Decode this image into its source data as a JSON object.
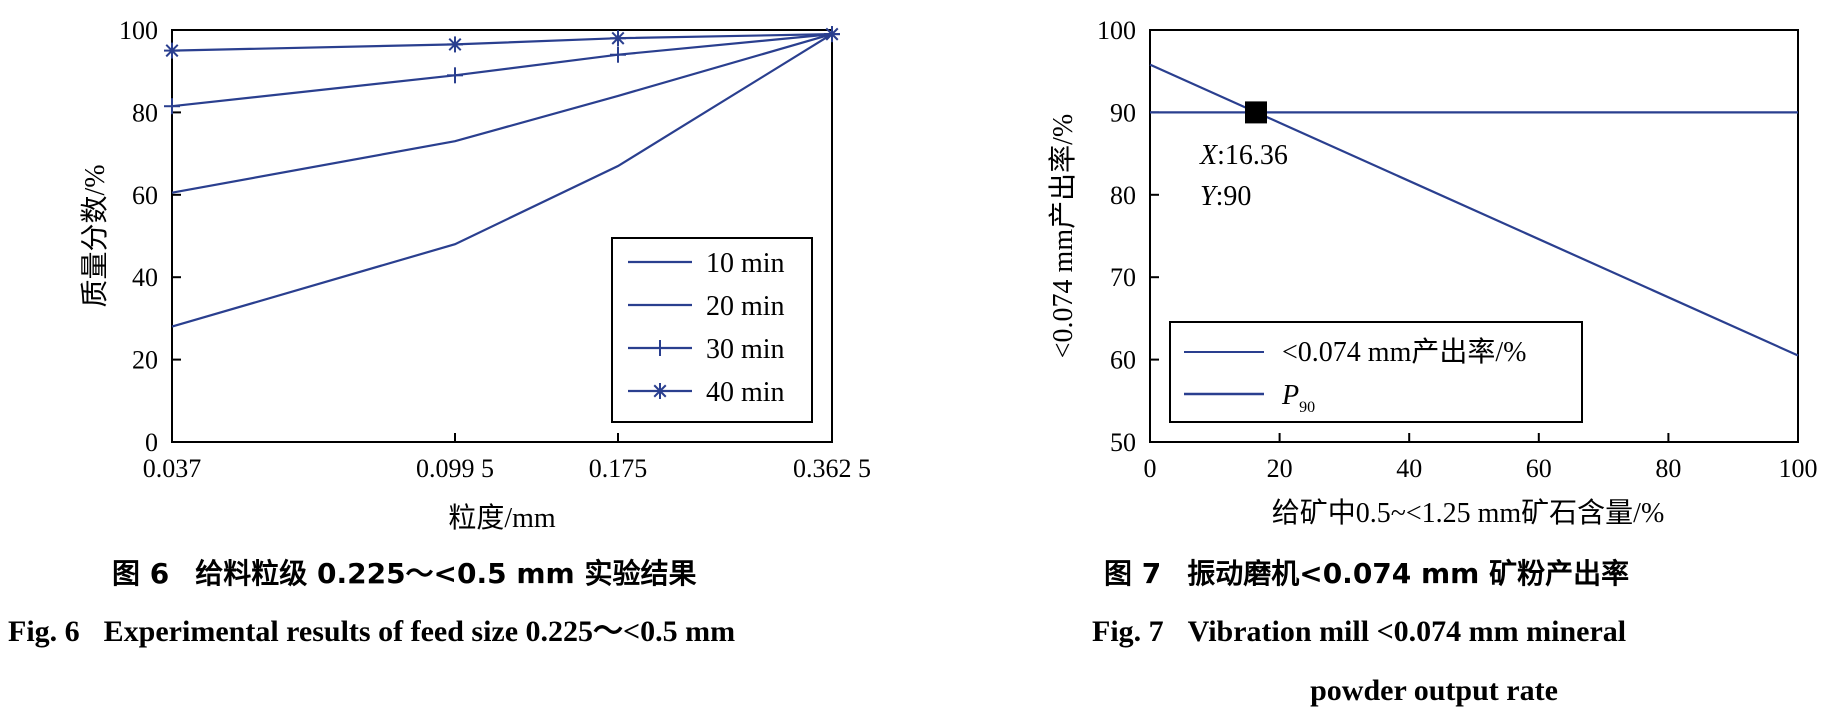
{
  "chart_data": [
    {
      "type": "line",
      "xlabel": "粒度/mm",
      "ylabel": "质量分数/%",
      "x_tick_labels": [
        "0.037",
        "0.099 5",
        "0.175",
        "0.362 5"
      ],
      "x": [
        0.037,
        0.0995,
        0.175,
        0.3625
      ],
      "y_ticks": [
        0,
        20,
        40,
        60,
        80,
        100
      ],
      "ylim": [
        0,
        100
      ],
      "legend_position": "bottom-right",
      "series": [
        {
          "name": "10 min",
          "marker": "none",
          "values": [
            28,
            48,
            67,
            99
          ]
        },
        {
          "name": "20 min",
          "marker": "none",
          "values": [
            60.5,
            73,
            84,
            99
          ]
        },
        {
          "name": "30 min",
          "marker": "plus",
          "values": [
            81.5,
            89,
            94,
            99
          ]
        },
        {
          "name": "40 min",
          "marker": "asterisk",
          "values": [
            95,
            96.5,
            98,
            99
          ]
        }
      ],
      "caption_cn": {
        "prefix": "图 6",
        "text": "给料粒级 0.225～<0.5 mm 实验结果"
      },
      "caption_en": {
        "prefix": "Fig. 6",
        "text": "Experimental results of feed size 0.225～<0.5 mm"
      }
    },
    {
      "type": "line",
      "xlabel": "给矿中0.5~<1.25 mm矿石含量/%",
      "ylabel": "<0.074 mm产出率/%",
      "x_ticks": [
        0,
        20,
        40,
        60,
        80,
        100
      ],
      "y_ticks": [
        50,
        60,
        70,
        80,
        90,
        100
      ],
      "xlim": [
        0,
        100
      ],
      "ylim": [
        50,
        100
      ],
      "legend_position": "bottom-left",
      "series": [
        {
          "name": "<0.074 mm产出率/%",
          "x": [
            0,
            100
          ],
          "values": [
            95.8,
            60.5
          ]
        },
        {
          "name": "P",
          "name_subscript": "90",
          "x": [
            0,
            100
          ],
          "values": [
            90,
            90
          ]
        }
      ],
      "annotation": {
        "x": 16.36,
        "y": 90,
        "x_label": "X",
        "x_value": ":16.36",
        "y_label": "Y",
        "y_value": ":90"
      },
      "caption_cn": {
        "prefix": "图 7",
        "text": "振动磨机<0.074 mm 矿粉产出率"
      },
      "caption_en": {
        "prefix": "Fig. 7",
        "line1": "Vibration mill <0.074 mm mineral",
        "line2": "powder output rate"
      }
    }
  ]
}
